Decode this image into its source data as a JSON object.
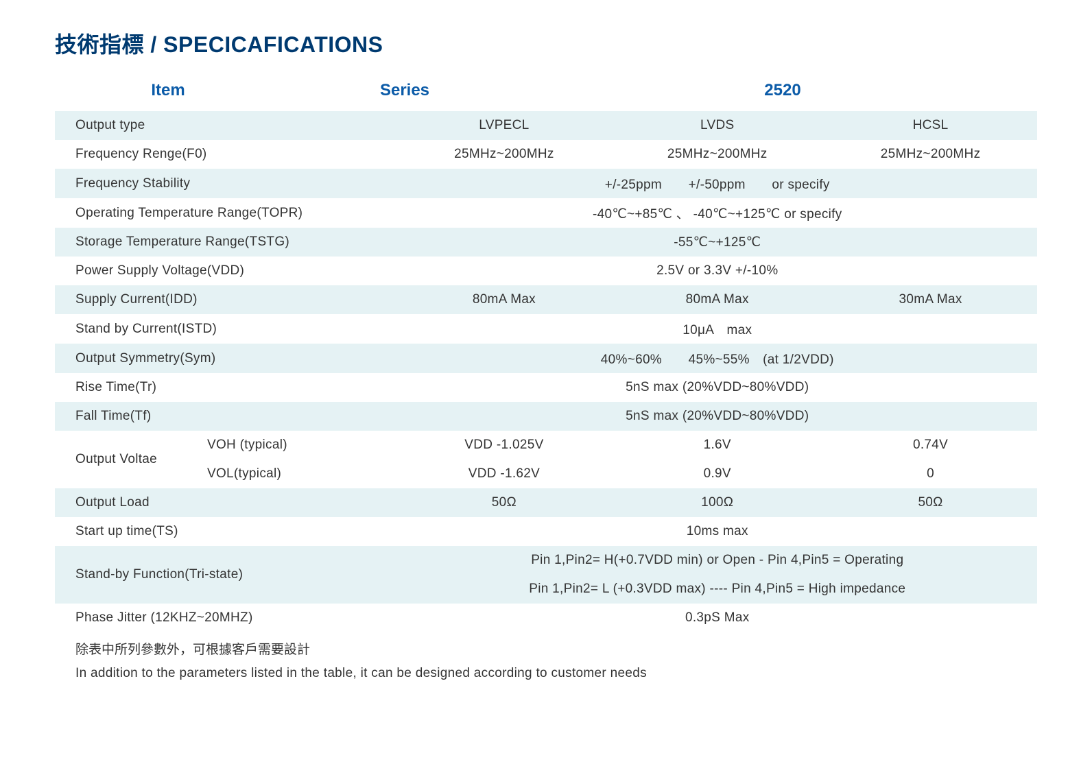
{
  "title": "技術指標 / SPECICAFICATIONS",
  "headers": {
    "item": "Item",
    "series": "Series",
    "model": "2520"
  },
  "rows": [
    {
      "label": "Output type",
      "c1": "LVPECL",
      "c2": "LVDS",
      "c3": "HCSL",
      "shaded": true
    },
    {
      "label": "Frequency Renge(F0)",
      "c1": "25MHz~200MHz",
      "c2": "25MHz~200MHz",
      "c3": "25MHz~200MHz",
      "shaded": false
    },
    {
      "label": "Frequency Stability",
      "merged": "+/-25ppm　　+/-50ppm　　or  specify",
      "shaded": true
    },
    {
      "label": "Operating Temperature Range(TOPR)",
      "merged": "-40℃~+85℃ 、 -40℃~+125℃   or  specify",
      "shaded": false
    },
    {
      "label": "Storage Temperature Range(TSTG)",
      "merged": "-55℃~+125℃",
      "shaded": true
    },
    {
      "label": "Power Supply Voltage(VDD)",
      "merged": "2.5V  or  3.3V   +/-10%",
      "shaded": false
    },
    {
      "label": "Supply Current(IDD)",
      "c1": "80mA Max",
      "c2": "80mA Max",
      "c3": "30mA Max",
      "shaded": true
    },
    {
      "label": "Stand by Current(ISTD)",
      "merged": "10μA　max",
      "shaded": false
    },
    {
      "label": "Output Symmetry(Sym)",
      "merged": "40%~60%　　45%~55%　(at 1/2VDD)",
      "shaded": true
    },
    {
      "label": "Rise Time(Tr)",
      "merged": "5nS max  (20%VDD~80%VDD)",
      "shaded": false
    },
    {
      "label": "Fall Time(Tf)",
      "merged": "5nS max  (20%VDD~80%VDD)",
      "shaded": true
    }
  ],
  "output_voltage": {
    "label": "Output Voltae",
    "voh_label": "VOH  (typical)",
    "vol_label": "VOL(typical)",
    "voh": {
      "c1": "VDD  -1.025V",
      "c2": "1.6V",
      "c3": "0.74V"
    },
    "vol": {
      "c1": "VDD -1.62V",
      "c2": "0.9V",
      "c3": "0"
    }
  },
  "rows2": [
    {
      "label": "Output Load",
      "c1": "50Ω",
      "c2": "100Ω",
      "c3": "50Ω",
      "shaded": true
    },
    {
      "label": "Start up time(TS)",
      "merged": "10ms max",
      "shaded": false
    }
  ],
  "standby": {
    "label": "Stand-by Function(Tri-state)",
    "line1": "Pin 1,Pin2= H(+0.7VDD min) or Open - Pin 4,Pin5 = Operating",
    "line2": "Pin 1,Pin2= L (+0.3VDD max) ---- Pin 4,Pin5 = High impedance"
  },
  "phase_jitter": {
    "label": "Phase Jitter  (12KHZ~20MHZ)",
    "value": "0.3pS Max"
  },
  "footnote_cn": "除表中所列參數外，可根據客戶需要設計",
  "footnote_en": "In addition to the parameters listed in the table, it can be designed according to customer needs",
  "colors": {
    "title_color": "#003a70",
    "header_color": "#0b5ba8",
    "text_color": "#333333",
    "shaded_bg": "#e5f2f4",
    "white_bg": "#ffffff"
  }
}
